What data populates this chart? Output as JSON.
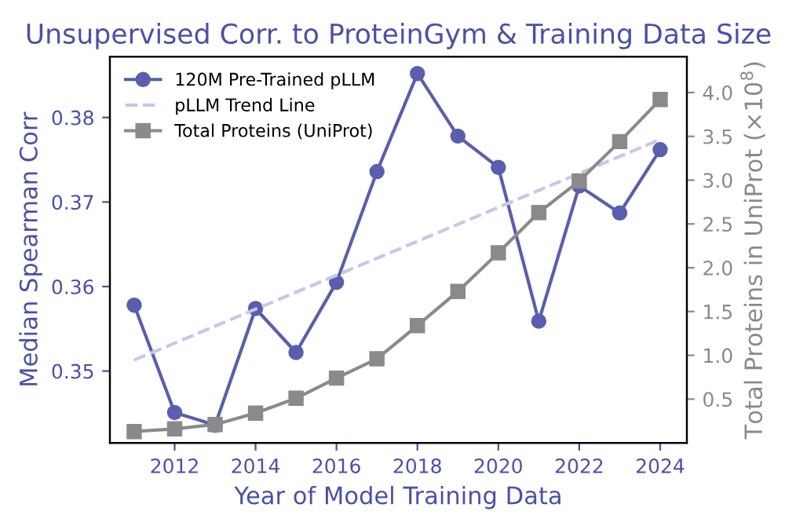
{
  "chart_data": {
    "type": "line",
    "title": "Unsupervised Corr. to ProteinGym & Training Data Size",
    "xlabel": "Year of Model Training Data",
    "ylabel": "Median Spearman Corr",
    "y2label": "Total Proteins in UniProt (×10$^{8}$)",
    "series": [
      {
        "name": "120M Pre-Trained pLLM",
        "color": "#5a5eae",
        "marker": "circle",
        "line_style": "solid",
        "x": [
          2011,
          2012,
          2013,
          2014,
          2015,
          2016,
          2017,
          2018,
          2019,
          2020,
          2021,
          2022,
          2023,
          2024
        ],
        "values": [
          0.3578,
          0.3451,
          0.3436,
          0.3574,
          0.3522,
          0.3605,
          0.3736,
          0.3852,
          0.3778,
          0.3741,
          0.3559,
          0.3719,
          0.3687,
          0.3762
        ]
      },
      {
        "name": "pLLM Trend Line",
        "color": "#c5c8ea",
        "marker": "none",
        "line_style": "dashed",
        "x": [
          2011,
          2024
        ],
        "values": [
          0.3513,
          0.3774
        ]
      },
      {
        "name": "Total Proteins (UniProt)",
        "color": "#8a8a8a",
        "marker": "square",
        "line_style": "solid",
        "axis": "y2",
        "x": [
          2011,
          2012,
          2013,
          2014,
          2015,
          2016,
          2017,
          2018,
          2019,
          2020,
          2021,
          2022,
          2023,
          2024
        ],
        "values": [
          0.13,
          0.16,
          0.21,
          0.34,
          0.51,
          0.74,
          0.96,
          1.34,
          1.73,
          2.17,
          2.63,
          2.99,
          3.44,
          3.92
        ]
      }
    ],
    "xlim": [
      2010.4,
      2024.66
    ],
    "xticks": [
      2012,
      2014,
      2016,
      2018,
      2020,
      2022,
      2024
    ],
    "ylim": [
      0.3415,
      0.3872
    ],
    "yticks": [
      0.35,
      0.36,
      0.37,
      0.38
    ],
    "y2lim": [
      0.0,
      4.41
    ],
    "y2ticks": [
      0.5,
      {
        "value": 1,
        "label": "1.0"
      },
      1.5,
      {
        "value": 2,
        "label": "2.0"
      },
      2.5,
      {
        "value": 3,
        "label": "3.0"
      },
      3.5,
      {
        "value": 4,
        "label": "4.0"
      }
    ],
    "legend": "top left",
    "grid": false
  }
}
